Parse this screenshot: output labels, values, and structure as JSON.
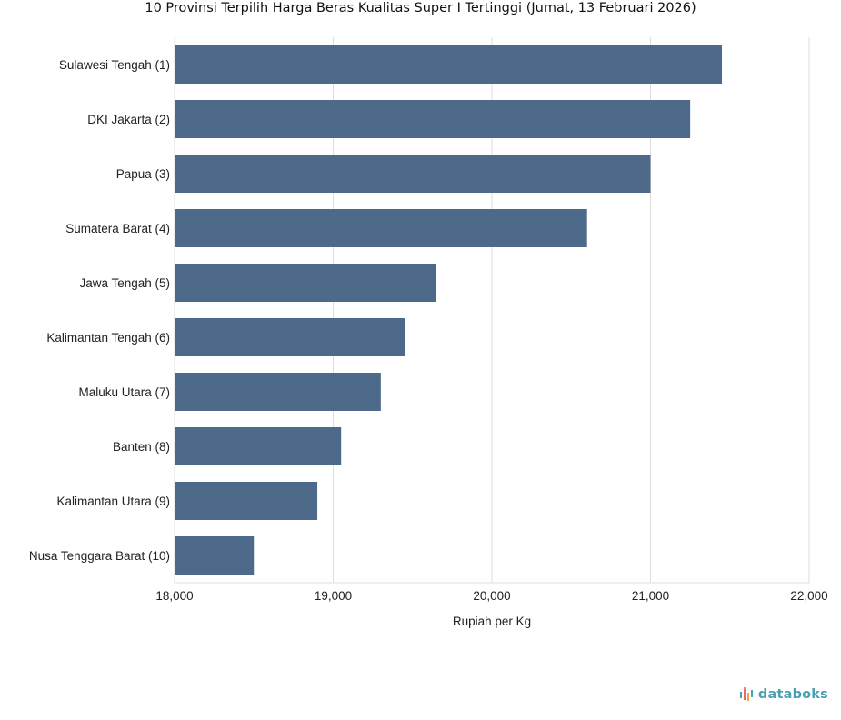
{
  "chart_data": {
    "type": "bar",
    "orientation": "horizontal",
    "title": "10 Provinsi Terpilih Harga Beras Kualitas Super I Tertinggi (Jumat, 13 Februari 2026)",
    "xlabel": "Rupiah per Kg",
    "ylabel": "",
    "xlim": [
      18000,
      22000
    ],
    "xticks": [
      18000,
      19000,
      20000,
      21000,
      22000
    ],
    "xtick_labels": [
      "18,000",
      "19,000",
      "20,000",
      "21,000",
      "22,000"
    ],
    "categories": [
      "Sulawesi Tengah (1)",
      "DKI Jakarta (2)",
      "Papua (3)",
      "Sumatera Barat (4)",
      "Jawa Tengah (5)",
      "Kalimantan Tengah (6)",
      "Maluku Utara (7)",
      "Banten (8)",
      "Kalimantan Utara (9)",
      "Nusa Tenggara Barat (10)"
    ],
    "values": [
      21450,
      21250,
      21000,
      20600,
      19650,
      19450,
      19300,
      19050,
      18900,
      18500
    ],
    "bar_color": "#4e6a8a",
    "grid_color": "#dddddd",
    "grid": true,
    "legend": "none"
  },
  "brand": {
    "name": "databoks",
    "icon": "databoks-logo-icon",
    "color": "#4a9fb0"
  }
}
